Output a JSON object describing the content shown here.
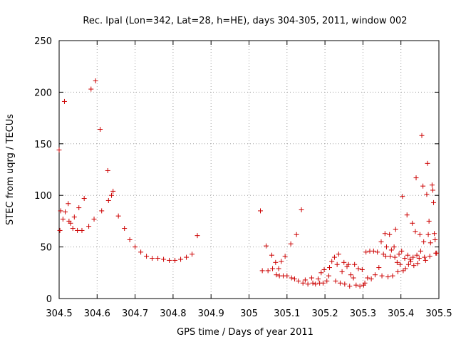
{
  "chart_data": {
    "type": "scatter",
    "title": "Rec. lpal (Lon=342, Lat=28, h=HE), days 304-305, 2011, window 002",
    "xlabel": "GPS time / Days of year 2011",
    "ylabel": "STEC from uqrg / TECUs",
    "xlim": [
      304.5,
      305.5
    ],
    "ylim": [
      0,
      250
    ],
    "xticks": [
      "304.5",
      "304.6",
      "304.7",
      "304.8",
      "304.9",
      "305",
      "305.1",
      "305.2",
      "305.3",
      "305.4",
      "305.5"
    ],
    "yticks": [
      "0",
      "50",
      "100",
      "150",
      "200",
      "250"
    ],
    "grid": true,
    "marker": "plus",
    "color": "#cc0000",
    "series": [
      {
        "points": [
          [
            304.5,
            144
          ],
          [
            304.502,
            66
          ],
          [
            304.504,
            85
          ],
          [
            304.51,
            77
          ],
          [
            304.514,
            191
          ],
          [
            304.516,
            84
          ],
          [
            304.524,
            92
          ],
          [
            304.526,
            75
          ],
          [
            304.53,
            73
          ],
          [
            304.536,
            68
          ],
          [
            304.54,
            79
          ],
          [
            304.548,
            66
          ],
          [
            304.552,
            88
          ],
          [
            304.56,
            66
          ],
          [
            304.566,
            97
          ],
          [
            304.578,
            70
          ],
          [
            304.584,
            203
          ],
          [
            304.592,
            77
          ],
          [
            304.596,
            211
          ],
          [
            304.608,
            164
          ],
          [
            304.612,
            85
          ],
          [
            304.628,
            124
          ],
          [
            304.63,
            95
          ],
          [
            304.638,
            100
          ],
          [
            304.642,
            104
          ],
          [
            304.656,
            80
          ],
          [
            304.672,
            68
          ],
          [
            304.686,
            57
          ],
          [
            304.7,
            50
          ],
          [
            304.715,
            45
          ],
          [
            304.73,
            41
          ],
          [
            304.745,
            39
          ],
          [
            304.76,
            39
          ],
          [
            304.775,
            38
          ],
          [
            304.79,
            37
          ],
          [
            304.805,
            37
          ],
          [
            304.82,
            38
          ],
          [
            304.835,
            40
          ],
          [
            304.85,
            43
          ],
          [
            304.864,
            61
          ]
        ]
      },
      {
        "points": [
          [
            305.03,
            85
          ],
          [
            305.035,
            27
          ],
          [
            305.045,
            51
          ],
          [
            305.05,
            27
          ],
          [
            305.06,
            42
          ],
          [
            305.062,
            29
          ],
          [
            305.07,
            35
          ],
          [
            305.072,
            23
          ],
          [
            305.078,
            29
          ],
          [
            305.08,
            22
          ],
          [
            305.085,
            36
          ],
          [
            305.09,
            22
          ],
          [
            305.095,
            41
          ],
          [
            305.1,
            22
          ],
          [
            305.11,
            53
          ],
          [
            305.112,
            20
          ],
          [
            305.12,
            19
          ],
          [
            305.125,
            62
          ],
          [
            305.13,
            17
          ],
          [
            305.138,
            86
          ],
          [
            305.142,
            15
          ],
          [
            305.148,
            18
          ],
          [
            305.155,
            14
          ],
          [
            305.165,
            20
          ],
          [
            305.168,
            15
          ],
          [
            305.175,
            14
          ],
          [
            305.182,
            19
          ],
          [
            305.186,
            15
          ],
          [
            305.19,
            25
          ],
          [
            305.195,
            15
          ],
          [
            305.198,
            28
          ],
          [
            305.205,
            17
          ],
          [
            305.21,
            22
          ],
          [
            305.212,
            30
          ],
          [
            305.218,
            36
          ],
          [
            305.225,
            40
          ],
          [
            305.228,
            17
          ],
          [
            305.232,
            33
          ],
          [
            305.236,
            43
          ],
          [
            305.24,
            15
          ],
          [
            305.245,
            26
          ],
          [
            305.25,
            35
          ],
          [
            305.252,
            14
          ],
          [
            305.258,
            31
          ],
          [
            305.262,
            33
          ],
          [
            305.265,
            12
          ],
          [
            305.268,
            23
          ],
          [
            305.275,
            20
          ],
          [
            305.278,
            33
          ],
          [
            305.282,
            13
          ],
          [
            305.288,
            29
          ],
          [
            305.292,
            12
          ],
          [
            305.298,
            28
          ],
          [
            305.302,
            13
          ],
          [
            305.305,
            15
          ],
          [
            305.308,
            45
          ],
          [
            305.312,
            20
          ],
          [
            305.318,
            46
          ],
          [
            305.322,
            19
          ],
          [
            305.328,
            46
          ],
          [
            305.332,
            23
          ],
          [
            305.338,
            45
          ],
          [
            305.342,
            30
          ],
          [
            305.348,
            55
          ],
          [
            305.35,
            22
          ],
          [
            305.354,
            43
          ],
          [
            305.358,
            63
          ],
          [
            305.36,
            41
          ],
          [
            305.362,
            50
          ],
          [
            305.366,
            21
          ],
          [
            305.37,
            62
          ],
          [
            305.372,
            41
          ],
          [
            305.375,
            47
          ],
          [
            305.378,
            22
          ],
          [
            305.382,
            50
          ],
          [
            305.384,
            40
          ],
          [
            305.386,
            67
          ],
          [
            305.39,
            35
          ],
          [
            305.392,
            26
          ],
          [
            305.395,
            43
          ],
          [
            305.398,
            33
          ],
          [
            305.402,
            46
          ],
          [
            305.404,
            99
          ],
          [
            305.406,
            27
          ],
          [
            305.41,
            39
          ],
          [
            305.412,
            29
          ],
          [
            305.416,
            81
          ],
          [
            305.418,
            42
          ],
          [
            305.42,
            33
          ],
          [
            305.424,
            38
          ],
          [
            305.426,
            36
          ],
          [
            305.43,
            73
          ],
          [
            305.432,
            40
          ],
          [
            305.434,
            32
          ],
          [
            305.438,
            65
          ],
          [
            305.44,
            117
          ],
          [
            305.442,
            42
          ],
          [
            305.444,
            34
          ],
          [
            305.448,
            39
          ],
          [
            305.45,
            62
          ],
          [
            305.452,
            46
          ],
          [
            305.455,
            158
          ],
          [
            305.458,
            109
          ],
          [
            305.46,
            55
          ],
          [
            305.462,
            40
          ],
          [
            305.465,
            37
          ],
          [
            305.468,
            101
          ],
          [
            305.47,
            131
          ],
          [
            305.472,
            62
          ],
          [
            305.474,
            75
          ],
          [
            305.476,
            41
          ],
          [
            305.478,
            54
          ],
          [
            305.482,
            110
          ],
          [
            305.484,
            105
          ],
          [
            305.486,
            93
          ],
          [
            305.488,
            63
          ],
          [
            305.49,
            57
          ],
          [
            305.492,
            44
          ],
          [
            305.494,
            44
          ]
        ]
      }
    ]
  }
}
